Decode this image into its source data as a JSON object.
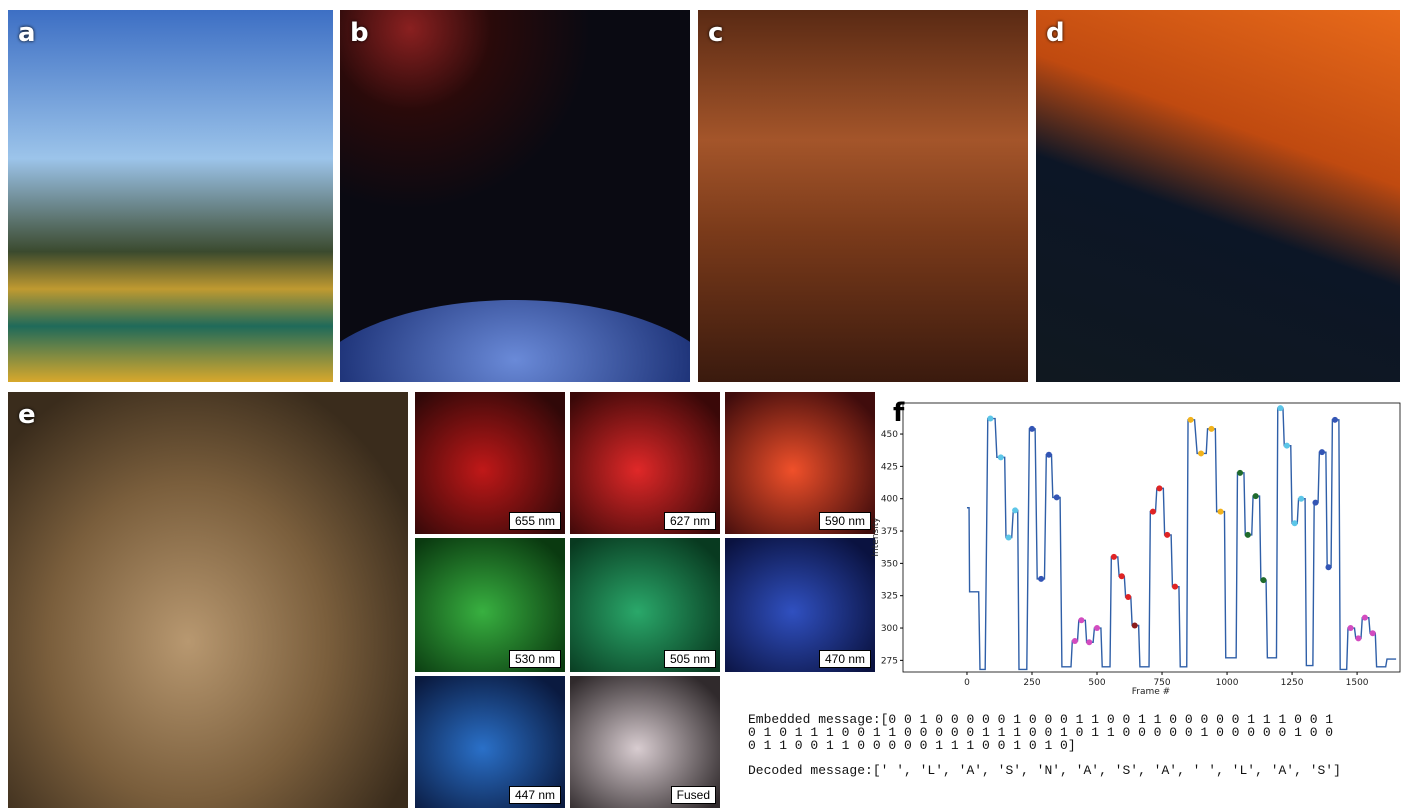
{
  "panels": [
    {
      "label": "a"
    },
    {
      "label": "b"
    },
    {
      "label": "c"
    },
    {
      "label": "d"
    },
    {
      "label": "e"
    },
    {
      "label": "f"
    }
  ],
  "tiles": [
    "655 nm",
    "627 nm",
    "590 nm",
    "530 nm",
    "505 nm",
    "470 nm",
    "447 nm",
    "Fused"
  ],
  "chart_data": {
    "type": "line",
    "x_label": "Frame #",
    "y_label": "Intensity",
    "x": [
      0,
      8,
      10,
      45,
      50,
      70,
      80,
      108,
      115,
      145,
      150,
      172,
      178,
      195,
      200,
      230,
      240,
      262,
      270,
      298,
      305,
      325,
      330,
      358,
      365,
      400,
      405,
      425,
      430,
      455,
      460,
      485,
      490,
      515,
      520,
      550,
      555,
      580,
      585,
      605,
      610,
      630,
      635,
      660,
      665,
      700,
      705,
      725,
      730,
      755,
      760,
      785,
      790,
      815,
      820,
      845,
      850,
      875,
      885,
      920,
      925,
      955,
      960,
      990,
      995,
      1035,
      1040,
      1065,
      1070,
      1095,
      1100,
      1125,
      1130,
      1150,
      1155,
      1190,
      1195,
      1215,
      1220,
      1245,
      1250,
      1270,
      1275,
      1300,
      1305,
      1330,
      1335,
      1350,
      1355,
      1380,
      1385,
      1400,
      1405,
      1430,
      1435,
      1460,
      1465,
      1490,
      1495,
      1515,
      1520,
      1545,
      1550,
      1570,
      1575,
      1610,
      1615,
      1650
    ],
    "series": [
      {
        "color": "#2f5fa8",
        "values": [
          393,
          393,
          328,
          328,
          268,
          268,
          462,
          462,
          432,
          432,
          370,
          370,
          391,
          391,
          268,
          268,
          454,
          454,
          338,
          338,
          434,
          434,
          401,
          401,
          270,
          270,
          290,
          290,
          306,
          306,
          289,
          289,
          300,
          300,
          270,
          270,
          355,
          355,
          340,
          340,
          324,
          324,
          302,
          302,
          270,
          270,
          390,
          390,
          408,
          408,
          372,
          372,
          332,
          332,
          270,
          270,
          461,
          461,
          435,
          435,
          454,
          454,
          390,
          390,
          277,
          277,
          420,
          420,
          372,
          372,
          402,
          402,
          337,
          337,
          277,
          277,
          470,
          470,
          441,
          441,
          381,
          381,
          400,
          400,
          271,
          271,
          397,
          397,
          436,
          436,
          347,
          347,
          461,
          461,
          268,
          268,
          300,
          300,
          292,
          292,
          308,
          308,
          296,
          296,
          270,
          270,
          276,
          276
        ]
      }
    ],
    "markers": {
      "x": [
        90,
        130,
        160,
        185,
        250,
        285,
        315,
        345,
        415,
        440,
        470,
        500,
        565,
        595,
        620,
        645,
        715,
        740,
        770,
        800,
        860,
        900,
        940,
        975,
        1050,
        1080,
        1110,
        1140,
        1205,
        1230,
        1260,
        1285,
        1340,
        1365,
        1390,
        1415,
        1475,
        1505,
        1530,
        1560
      ],
      "y": [
        462,
        432,
        370,
        391,
        454,
        338,
        434,
        401,
        290,
        306,
        289,
        300,
        355,
        340,
        324,
        302,
        390,
        408,
        372,
        332,
        461,
        435,
        454,
        390,
        420,
        372,
        402,
        337,
        470,
        441,
        381,
        400,
        397,
        436,
        347,
        461,
        300,
        292,
        308,
        296
      ],
      "colors": [
        "#5cc6e8",
        "#5cc6e8",
        "#5cc6e8",
        "#5cc6e8",
        "#3355b5",
        "#3355b5",
        "#3355b5",
        "#3355b5",
        "#d34cc0",
        "#d34cc0",
        "#d34cc0",
        "#d34cc0",
        "#e02424",
        "#e02424",
        "#e02424",
        "#8c1c1c",
        "#e02424",
        "#e02424",
        "#e02424",
        "#e02424",
        "#f2b31c",
        "#f2b31c",
        "#f2b31c",
        "#f2b31c",
        "#1f6b2c",
        "#1f6b2c",
        "#1f6b2c",
        "#1f6b2c",
        "#5cc6e8",
        "#5cc6e8",
        "#5cc6e8",
        "#5cc6e8",
        "#3355b5",
        "#3355b5",
        "#3355b5",
        "#3355b5",
        "#d34cc0",
        "#d34cc0",
        "#d34cc0",
        "#d34cc0"
      ]
    },
    "xlim": [
      -246,
      1665
    ],
    "xticks": [
      0,
      250,
      500,
      750,
      1000,
      1250,
      1500
    ],
    "ylim": [
      266,
      474
    ],
    "yticks": [
      275,
      300,
      325,
      350,
      375,
      400,
      425,
      450
    ]
  },
  "message": {
    "embedded_label": "Embedded message:",
    "embedded_lines": [
      "[0 0 1 0 0 0 0 0 1 0 0 0 1 1 0 0 1 1 0 0 0 0 0 1 1 1 0 0 1",
      "0 1 0 1 1 1 0 0 1 1 0 0 0 0 0 1 1 1 0 0 1 0 1 1 0 0 0 0 0 1 0 0 0 0 0 1 0 0",
      "0 1 1 0 0 1 1 0 0 0 0 0 1 1 1 0 0 1 0 1 0]"
    ],
    "decoded_label": "Decoded message:",
    "decoded": "[' ', 'L', 'A', 'S', 'N', 'A', 'S', 'A', ' ', 'L', 'A', 'S']"
  }
}
